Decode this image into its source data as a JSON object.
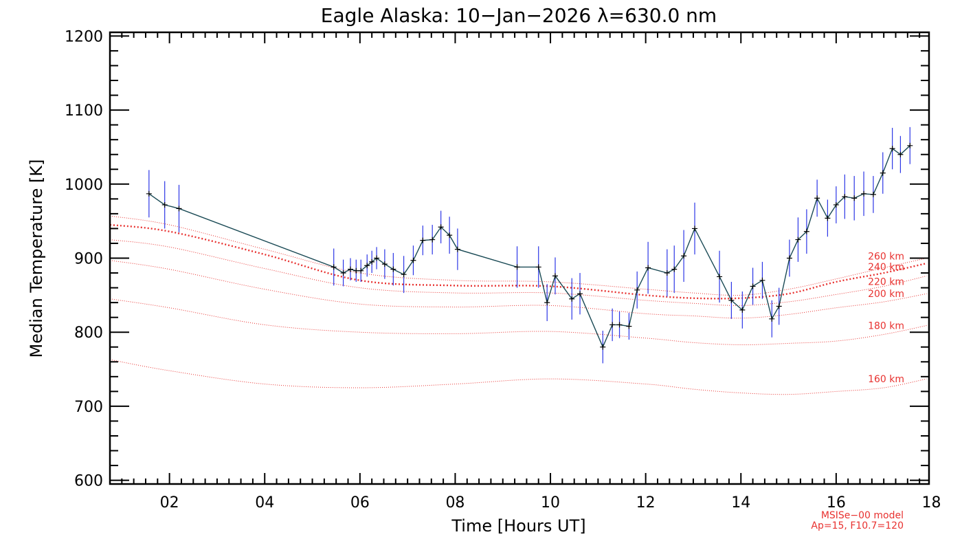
{
  "chart_data": {
    "type": "line",
    "title": "Eagle Alaska: 10−Jan−2026 λ=630.0 nm",
    "xlabel": "Time [Hours UT]",
    "ylabel": "Median Temperature [K]",
    "xlim": [
      0.75,
      17.95
    ],
    "ylim": [
      595,
      1205
    ],
    "x_ticks": [
      2,
      4,
      6,
      8,
      10,
      12,
      14,
      16,
      18
    ],
    "x_tick_labels": [
      "02",
      "04",
      "06",
      "08",
      "10",
      "12",
      "14",
      "16",
      "18"
    ],
    "y_ticks": [
      600,
      700,
      800,
      900,
      1000,
      1100,
      1200
    ],
    "y_tick_labels": [
      "600",
      "700",
      "800",
      "900",
      "1000",
      "1100",
      "1200"
    ],
    "grid": false,
    "colors": {
      "data_line": "#1a4a55",
      "error_bar": "#2b35e6",
      "model": "#e8312f",
      "axes": "#000000"
    },
    "series": [
      {
        "x": [
          1.57,
          1.9,
          2.2,
          5.45,
          5.65,
          5.8,
          5.92,
          6.02,
          6.15,
          6.25,
          6.35,
          6.52,
          6.7,
          6.92,
          7.12,
          7.32,
          7.52,
          7.7,
          7.88,
          8.05,
          9.3,
          9.75,
          9.93,
          10.1,
          10.45,
          10.62,
          11.1,
          11.3,
          11.45,
          11.65,
          11.82,
          12.05,
          12.45,
          12.6,
          12.8,
          13.03,
          13.55,
          13.8,
          14.03,
          14.25,
          14.45,
          14.65,
          14.8,
          15.02,
          15.2,
          15.38,
          15.6,
          15.82,
          16.0,
          16.18,
          16.38,
          16.58,
          16.78,
          16.98,
          17.18,
          17.35,
          17.55
        ],
        "values": [
          987,
          972,
          967,
          888,
          880,
          885,
          883,
          883,
          890,
          895,
          900,
          892,
          885,
          878,
          897,
          924,
          925,
          942,
          931,
          912,
          888,
          888,
          840,
          876,
          845,
          852,
          780,
          810,
          810,
          808,
          857,
          887,
          880,
          885,
          903,
          940,
          875,
          843,
          830,
          862,
          870,
          818,
          835,
          900,
          925,
          936,
          981,
          954,
          972,
          983,
          981,
          987,
          986,
          1015,
          1048,
          1040,
          1052
        ],
        "error": [
          32,
          32,
          32,
          25,
          18,
          15,
          15,
          15,
          15,
          15,
          15,
          20,
          22,
          25,
          20,
          20,
          20,
          22,
          25,
          28,
          28,
          28,
          25,
          25,
          28,
          28,
          22,
          22,
          18,
          18,
          25,
          35,
          32,
          32,
          35,
          35,
          35,
          25,
          25,
          25,
          25,
          25,
          25,
          25,
          30,
          30,
          25,
          25,
          25,
          30,
          30,
          30,
          25,
          28,
          28,
          25,
          25
        ]
      }
    ],
    "model_curves": [
      {
        "name": "260 km",
        "x": [
          0.75,
          2,
          4,
          6,
          8,
          10,
          12,
          13,
          14,
          15,
          16,
          17,
          17.9
        ],
        "values": [
          957,
          945,
          912,
          880,
          870,
          868,
          858,
          853,
          850,
          858,
          872,
          887,
          900
        ]
      },
      {
        "name": "240 km",
        "x": [
          0.75,
          2,
          4,
          6,
          8,
          10,
          12,
          13,
          14,
          15,
          16,
          17,
          17.9
        ],
        "values": [
          945,
          936,
          905,
          870,
          863,
          862,
          850,
          846,
          846,
          852,
          868,
          880,
          893
        ]
      },
      {
        "name": "220 km",
        "x": [
          0.75,
          2,
          4,
          6,
          8,
          10,
          12,
          13,
          14,
          15,
          16,
          17,
          17.9
        ],
        "values": [
          925,
          915,
          886,
          860,
          853,
          853,
          843,
          839,
          836,
          841,
          851,
          862,
          876
        ]
      },
      {
        "name": "200 km",
        "x": [
          0.75,
          2,
          4,
          6,
          8,
          10,
          12,
          13,
          14,
          15,
          16,
          17,
          17.9
        ],
        "values": [
          897,
          885,
          858,
          838,
          834,
          836,
          825,
          822,
          819,
          824,
          833,
          841,
          852
        ]
      },
      {
        "name": "180 km",
        "x": [
          0.75,
          2,
          4,
          6,
          8,
          10,
          12,
          13,
          14,
          15,
          16,
          17,
          17.9
        ],
        "values": [
          845,
          833,
          810,
          800,
          798,
          801,
          792,
          786,
          783,
          785,
          788,
          797,
          809
        ]
      },
      {
        "name": "160 km",
        "x": [
          0.75,
          2,
          4,
          6,
          8,
          10,
          12,
          13,
          14,
          15,
          16,
          17,
          17.9
        ],
        "values": [
          763,
          748,
          730,
          725,
          730,
          737,
          730,
          723,
          718,
          716,
          720,
          725,
          737
        ]
      }
    ],
    "bold_model": "240 km",
    "model_note": [
      "MSISe−00 model",
      "Ap=15, F10.7=120"
    ]
  }
}
